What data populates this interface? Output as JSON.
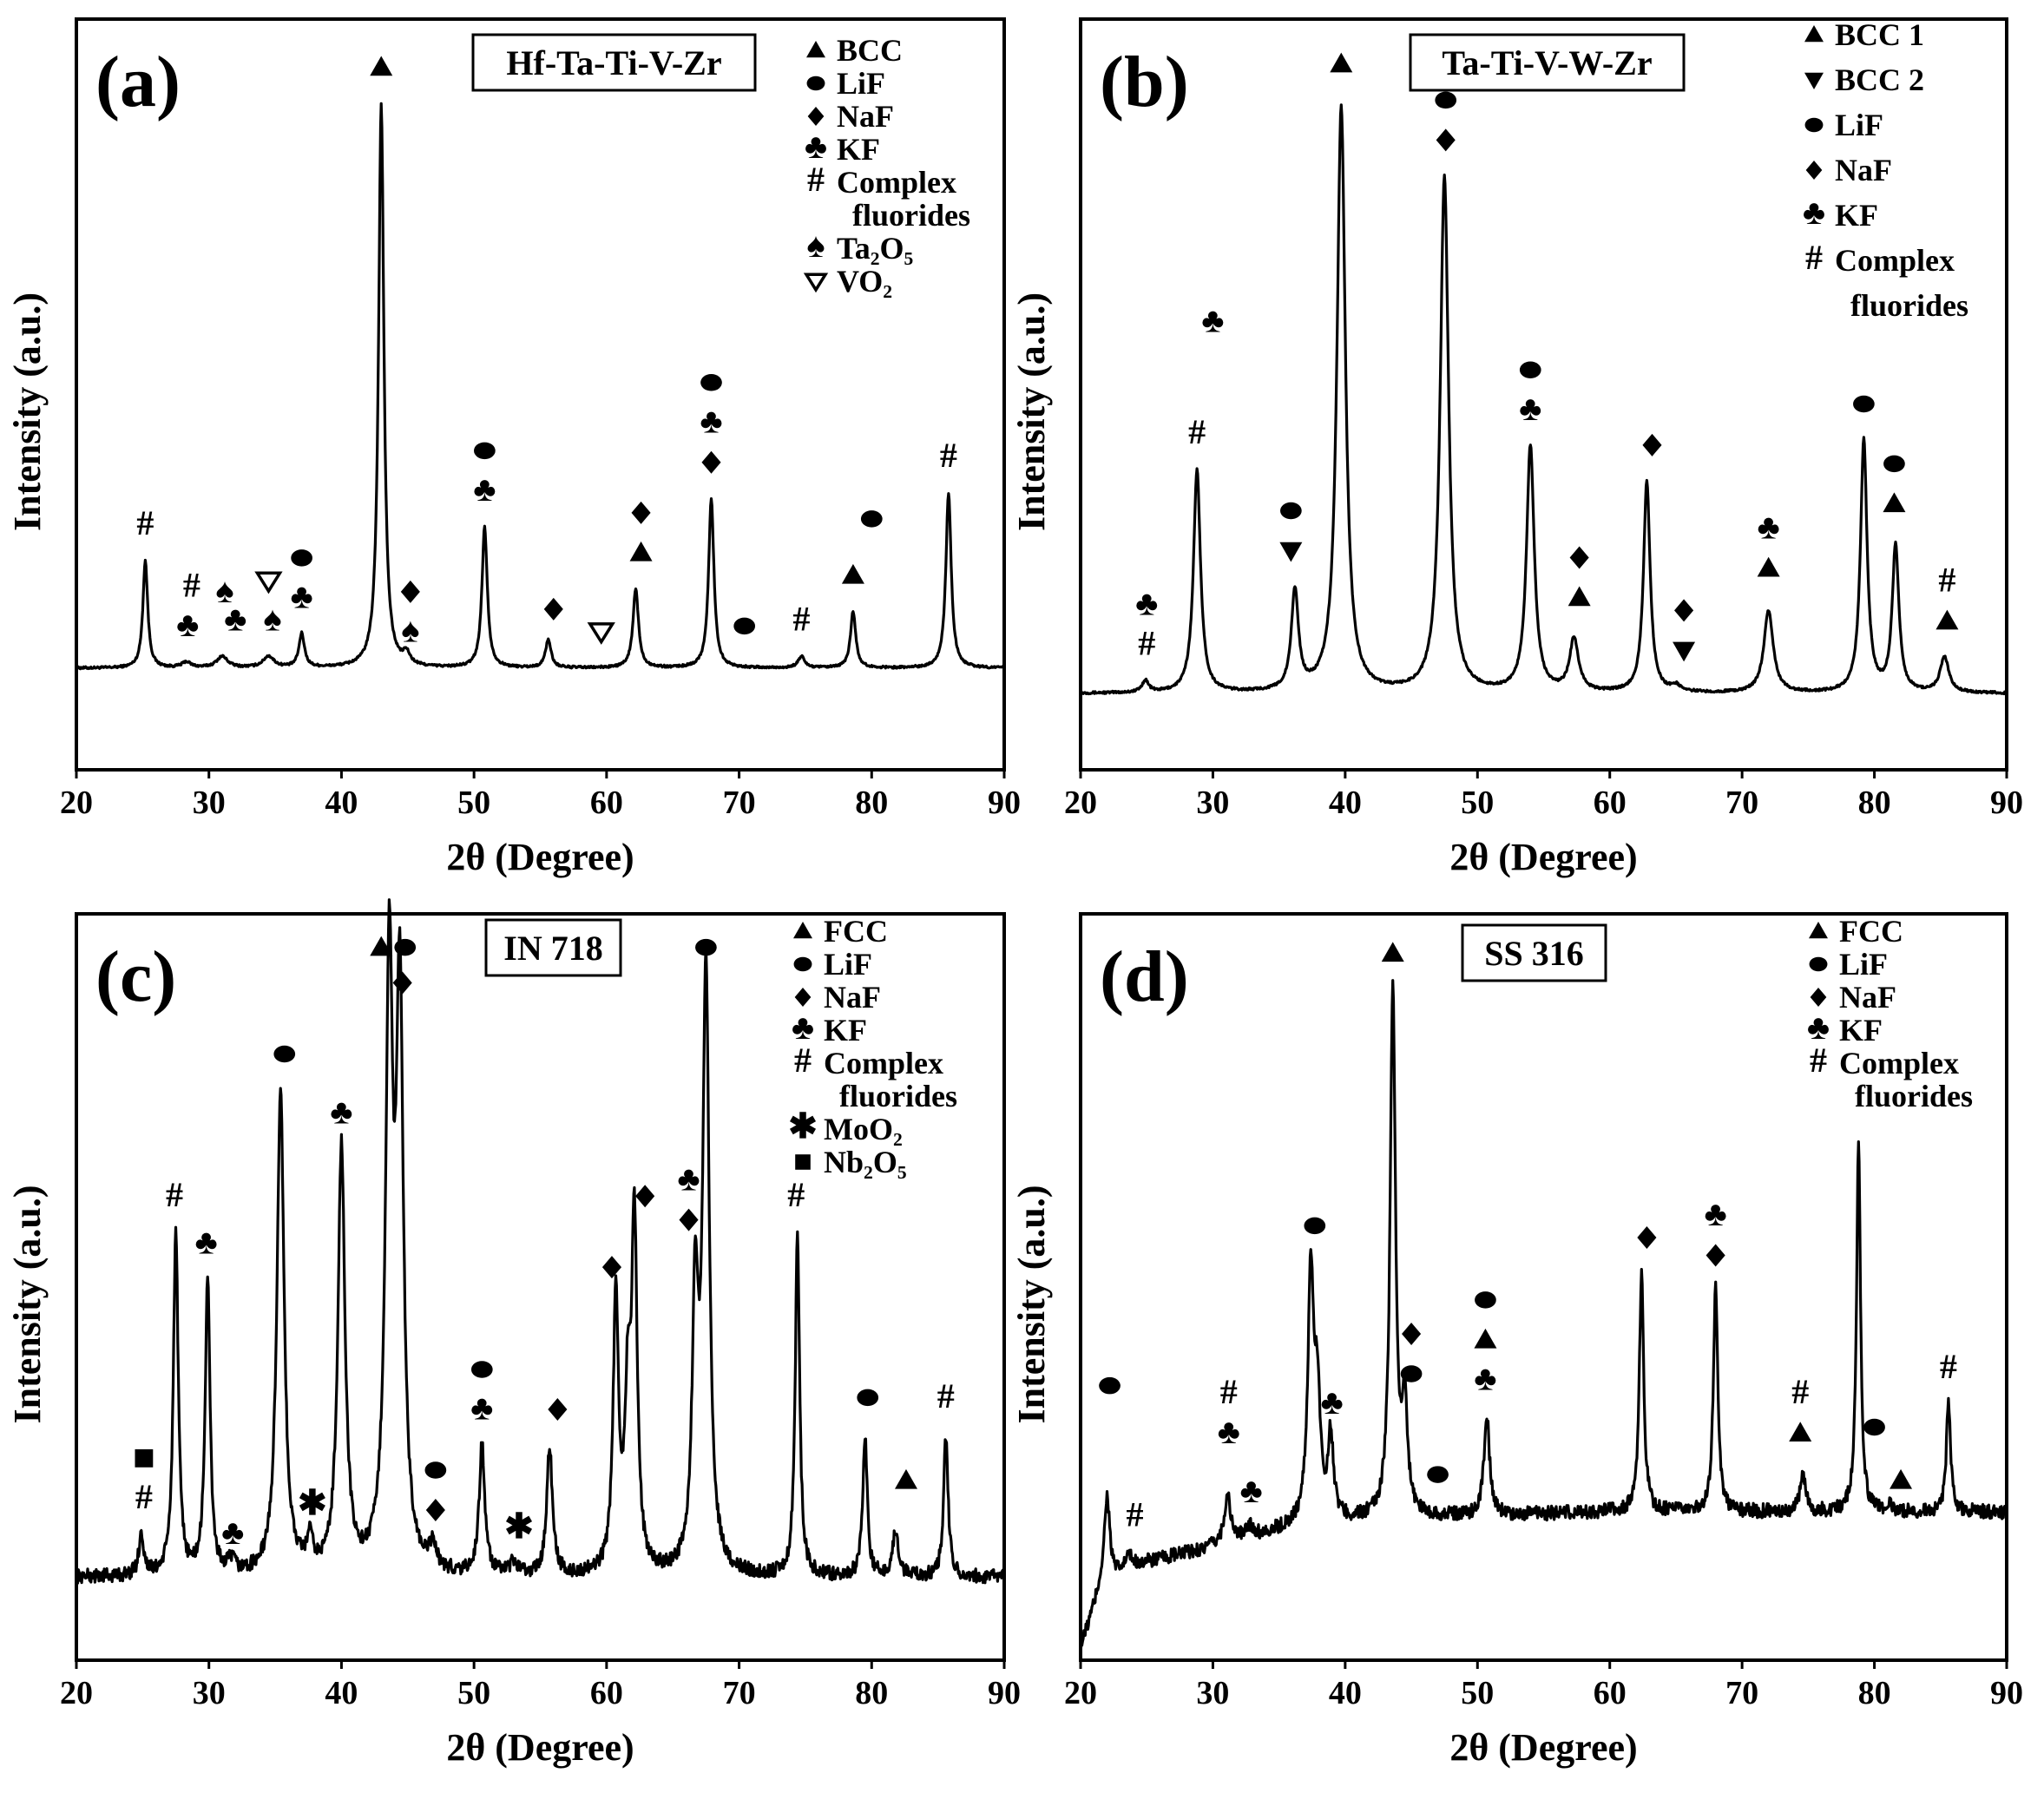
{
  "chart_data": [
    {
      "type": "line",
      "panel": "(a)",
      "sample": "Hf-Ta-Ti-V-Zr",
      "xlabel": "2θ (Degree)",
      "ylabel": "Intensity (a.u.)",
      "xlim": [
        20,
        90
      ],
      "xticks": [
        20,
        30,
        40,
        50,
        60,
        70,
        80,
        90
      ],
      "ylim": [
        -0.18,
        1.15
      ],
      "legend": [
        {
          "symbol": "▲",
          "label": "BCC"
        },
        {
          "symbol": "●",
          "label": "LiF"
        },
        {
          "symbol": "◆",
          "label": "NaF"
        },
        {
          "symbol": "♣",
          "label": "KF"
        },
        {
          "symbol": "#",
          "label": "Complex"
        },
        {
          "symbol": "",
          "label": "fluorides"
        },
        {
          "symbol": "♠",
          "label": "Ta₂O₅"
        },
        {
          "symbol": "▽",
          "label": "VO₂"
        }
      ],
      "noise": 0.002,
      "baseline": [
        [
          20,
          0.0
        ],
        [
          90,
          0.0
        ]
      ],
      "peaks": [
        {
          "x": 25.2,
          "h": 0.19,
          "w": 0.22
        },
        {
          "x": 28.3,
          "h": 0.01,
          "w": 0.4
        },
        {
          "x": 31.0,
          "h": 0.02,
          "w": 0.5
        },
        {
          "x": 34.5,
          "h": 0.02,
          "w": 0.5
        },
        {
          "x": 37.0,
          "h": 0.06,
          "w": 0.25
        },
        {
          "x": 43.0,
          "h": 1.0,
          "w": 0.24
        },
        {
          "x": 44.9,
          "h": 0.02,
          "w": 0.3
        },
        {
          "x": 50.8,
          "h": 0.25,
          "w": 0.24
        },
        {
          "x": 55.6,
          "h": 0.05,
          "w": 0.25
        },
        {
          "x": 62.2,
          "h": 0.14,
          "w": 0.25
        },
        {
          "x": 67.9,
          "h": 0.3,
          "w": 0.24
        },
        {
          "x": 74.7,
          "h": 0.02,
          "w": 0.3
        },
        {
          "x": 78.6,
          "h": 0.1,
          "w": 0.24
        },
        {
          "x": 85.8,
          "h": 0.31,
          "w": 0.24
        }
      ],
      "annotations": [
        {
          "x": 25.2,
          "y": 0.23,
          "symbols": [
            "#"
          ]
        },
        {
          "x": 28.4,
          "y": 0.05,
          "symbols": [
            "♣"
          ]
        },
        {
          "x": 28.7,
          "y": 0.12,
          "symbols": [
            "#"
          ]
        },
        {
          "x": 31.2,
          "y": 0.11,
          "symbols": [
            "♠"
          ]
        },
        {
          "x": 32.0,
          "y": 0.06,
          "symbols": [
            "♣"
          ]
        },
        {
          "x": 34.5,
          "y": 0.13,
          "symbols": [
            "▽"
          ]
        },
        {
          "x": 34.8,
          "y": 0.06,
          "symbols": [
            "♠"
          ]
        },
        {
          "x": 37.0,
          "y": 0.1,
          "symbols": [
            "♣",
            "●"
          ]
        },
        {
          "x": 43.0,
          "y": 1.04,
          "symbols": [
            "▲"
          ]
        },
        {
          "x": 45.2,
          "y": 0.04,
          "symbols": [
            "♠",
            "◆"
          ]
        },
        {
          "x": 50.8,
          "y": 0.29,
          "symbols": [
            "♣",
            "●"
          ]
        },
        {
          "x": 56.0,
          "y": 0.08,
          "symbols": [
            "◆"
          ]
        },
        {
          "x": 59.6,
          "y": 0.04,
          "symbols": [
            "▽"
          ]
        },
        {
          "x": 62.6,
          "y": 0.18,
          "symbols": [
            "▲",
            "◆"
          ]
        },
        {
          "x": 67.9,
          "y": 0.34,
          "symbols": [
            "◆",
            "♣",
            "●"
          ]
        },
        {
          "x": 70.4,
          "y": 0.05,
          "symbols": [
            "●"
          ]
        },
        {
          "x": 74.7,
          "y": 0.06,
          "symbols": [
            "#"
          ]
        },
        {
          "x": 78.6,
          "y": 0.14,
          "symbols": [
            "▲"
          ]
        },
        {
          "x": 80.0,
          "y": 0.24,
          "symbols": [
            "●"
          ]
        },
        {
          "x": 85.8,
          "y": 0.35,
          "symbols": [
            "#"
          ]
        }
      ]
    },
    {
      "type": "line",
      "panel": "(b)",
      "sample": "Ta-Ti-V-W-Zr",
      "xlabel": "2θ (Degree)",
      "ylabel": "Intensity (a.u.)",
      "xlim": [
        20,
        90
      ],
      "xticks": [
        20,
        30,
        40,
        50,
        60,
        70,
        80,
        90
      ],
      "ylim": [
        -0.13,
        1.15
      ],
      "legend": [
        {
          "symbol": "▲",
          "label": "BCC 1"
        },
        {
          "symbol": "▼",
          "label": "BCC 2"
        },
        {
          "symbol": "●",
          "label": "LiF"
        },
        {
          "symbol": "◆",
          "label": "NaF"
        },
        {
          "symbol": "♣",
          "label": "KF"
        },
        {
          "symbol": "#",
          "label": "Complex"
        },
        {
          "symbol": "",
          "label": "fluorides"
        }
      ],
      "noise": 0.002,
      "baseline": [
        [
          20,
          0.0
        ],
        [
          90,
          0.0
        ]
      ],
      "peaks": [
        {
          "x": 24.9,
          "h": 0.02,
          "w": 0.3
        },
        {
          "x": 28.8,
          "h": 0.38,
          "w": 0.32
        },
        {
          "x": 36.2,
          "h": 0.17,
          "w": 0.32
        },
        {
          "x": 39.7,
          "h": 1.0,
          "w": 0.38
        },
        {
          "x": 47.5,
          "h": 0.88,
          "w": 0.38
        },
        {
          "x": 54.0,
          "h": 0.42,
          "w": 0.35
        },
        {
          "x": 57.3,
          "h": 0.09,
          "w": 0.4
        },
        {
          "x": 62.8,
          "h": 0.36,
          "w": 0.3
        },
        {
          "x": 65.0,
          "h": 0.01,
          "w": 0.4
        },
        {
          "x": 72.0,
          "h": 0.14,
          "w": 0.42
        },
        {
          "x": 79.2,
          "h": 0.43,
          "w": 0.3
        },
        {
          "x": 81.6,
          "h": 0.25,
          "w": 0.3
        },
        {
          "x": 85.3,
          "h": 0.06,
          "w": 0.4
        }
      ],
      "annotations": [
        {
          "x": 25.0,
          "y": 0.06,
          "symbols": [
            "#",
            "♣"
          ]
        },
        {
          "x": 28.8,
          "y": 0.42,
          "symbols": [
            "#"
          ]
        },
        {
          "x": 30.0,
          "y": 0.61,
          "symbols": [
            "♣"
          ]
        },
        {
          "x": 35.9,
          "y": 0.22,
          "symbols": [
            "▼",
            "●"
          ]
        },
        {
          "x": 39.7,
          "y": 1.05,
          "symbols": [
            "▲"
          ]
        },
        {
          "x": 47.6,
          "y": 0.92,
          "symbols": [
            "◆",
            "●"
          ]
        },
        {
          "x": 54.0,
          "y": 0.46,
          "symbols": [
            "♣",
            "●"
          ]
        },
        {
          "x": 57.7,
          "y": 0.14,
          "symbols": [
            "▲",
            "◆"
          ]
        },
        {
          "x": 63.2,
          "y": 0.4,
          "symbols": [
            "◆"
          ]
        },
        {
          "x": 65.6,
          "y": 0.05,
          "symbols": [
            "▼",
            "◆"
          ]
        },
        {
          "x": 72.0,
          "y": 0.19,
          "symbols": [
            "▲",
            "♣"
          ]
        },
        {
          "x": 79.2,
          "y": 0.47,
          "symbols": [
            "●"
          ]
        },
        {
          "x": 81.5,
          "y": 0.3,
          "symbols": [
            "▲",
            "●"
          ]
        },
        {
          "x": 85.5,
          "y": 0.1,
          "symbols": [
            "▲",
            "#"
          ]
        }
      ]
    },
    {
      "type": "line",
      "panel": "(c)",
      "sample": "IN 718",
      "xlabel": "2θ (Degree)",
      "ylabel": "Intensity (a.u.)",
      "xlim": [
        20,
        90
      ],
      "xticks": [
        20,
        30,
        40,
        50,
        60,
        70,
        80,
        90
      ],
      "ylim": [
        -0.14,
        1.12
      ],
      "legend": [
        {
          "symbol": "▲",
          "label": "FCC"
        },
        {
          "symbol": "●",
          "label": "LiF"
        },
        {
          "symbol": "◆",
          "label": "NaF"
        },
        {
          "symbol": "♣",
          "label": "KF"
        },
        {
          "symbol": "#",
          "label": "Complex"
        },
        {
          "symbol": "",
          "label": "fluorides"
        },
        {
          "symbol": "✱",
          "label": "MoO₂"
        },
        {
          "symbol": "■",
          "label": "Nb₂O₅"
        }
      ],
      "noise": 0.012,
      "baseline": [
        [
          20,
          0.0
        ],
        [
          90,
          0.0
        ]
      ],
      "peaks": [
        {
          "x": 24.9,
          "h": 0.07,
          "w": 0.22
        },
        {
          "x": 27.5,
          "h": 0.58,
          "w": 0.22
        },
        {
          "x": 29.9,
          "h": 0.5,
          "w": 0.22
        },
        {
          "x": 31.7,
          "h": 0.02,
          "w": 0.3
        },
        {
          "x": 35.4,
          "h": 0.82,
          "w": 0.32
        },
        {
          "x": 37.6,
          "h": 0.05,
          "w": 0.25
        },
        {
          "x": 40.0,
          "h": 0.72,
          "w": 0.32
        },
        {
          "x": 43.6,
          "h": 1.0,
          "w": 0.32
        },
        {
          "x": 44.4,
          "h": 0.95,
          "w": 0.32
        },
        {
          "x": 46.9,
          "h": 0.04,
          "w": 0.3
        },
        {
          "x": 50.6,
          "h": 0.22,
          "w": 0.25
        },
        {
          "x": 53.0,
          "h": 0.02,
          "w": 0.3
        },
        {
          "x": 55.7,
          "h": 0.22,
          "w": 0.25
        },
        {
          "x": 60.7,
          "h": 0.46,
          "w": 0.25
        },
        {
          "x": 61.6,
          "h": 0.27,
          "w": 0.25
        },
        {
          "x": 62.1,
          "h": 0.58,
          "w": 0.25
        },
        {
          "x": 66.7,
          "h": 0.45,
          "w": 0.28
        },
        {
          "x": 67.5,
          "h": 1.0,
          "w": 0.3
        },
        {
          "x": 74.4,
          "h": 0.58,
          "w": 0.2
        },
        {
          "x": 79.5,
          "h": 0.24,
          "w": 0.2
        },
        {
          "x": 81.8,
          "h": 0.08,
          "w": 0.25
        },
        {
          "x": 85.6,
          "h": 0.24,
          "w": 0.2
        }
      ],
      "annotations": [
        {
          "x": 25.1,
          "y": 0.11,
          "symbols": [
            "#",
            "■"
          ]
        },
        {
          "x": 27.4,
          "y": 0.62,
          "symbols": [
            "#"
          ]
        },
        {
          "x": 29.8,
          "y": 0.54,
          "symbols": [
            "♣"
          ]
        },
        {
          "x": 31.8,
          "y": 0.05,
          "symbols": [
            "♣"
          ]
        },
        {
          "x": 35.7,
          "y": 0.86,
          "symbols": [
            "●"
          ]
        },
        {
          "x": 37.8,
          "y": 0.1,
          "symbols": [
            "✱"
          ]
        },
        {
          "x": 40.0,
          "y": 0.76,
          "symbols": [
            "♣"
          ]
        },
        {
          "x": 43.0,
          "y": 1.04,
          "symbols": [
            "▲"
          ]
        },
        {
          "x": 44.8,
          "y": 1.04,
          "symbols": [
            "●"
          ]
        },
        {
          "x": 44.6,
          "y": 0.98,
          "symbols": [
            "◆"
          ]
        },
        {
          "x": 47.1,
          "y": 0.09,
          "symbols": [
            "◆",
            "●"
          ]
        },
        {
          "x": 53.4,
          "y": 0.06,
          "symbols": [
            "✱"
          ]
        },
        {
          "x": 50.6,
          "y": 0.26,
          "symbols": [
            "♣",
            "●"
          ]
        },
        {
          "x": 56.3,
          "y": 0.26,
          "symbols": [
            "◆"
          ]
        },
        {
          "x": 60.4,
          "y": 0.5,
          "symbols": [
            "◆"
          ]
        },
        {
          "x": 62.9,
          "y": 0.62,
          "symbols": [
            "◆"
          ]
        },
        {
          "x": 66.2,
          "y": 0.58,
          "symbols": [
            "◆",
            "♣"
          ]
        },
        {
          "x": 67.5,
          "y": 1.04,
          "symbols": [
            "●"
          ]
        },
        {
          "x": 74.3,
          "y": 0.62,
          "symbols": [
            "#"
          ]
        },
        {
          "x": 79.7,
          "y": 0.28,
          "symbols": [
            "●"
          ]
        },
        {
          "x": 82.6,
          "y": 0.14,
          "symbols": [
            "▲"
          ]
        },
        {
          "x": 85.6,
          "y": 0.28,
          "symbols": [
            "#"
          ]
        }
      ]
    },
    {
      "type": "line",
      "panel": "(d)",
      "sample": "SS 316",
      "xlabel": "2θ (Degree)",
      "ylabel": "Intensity (a.u.)",
      "xlim": [
        20,
        90
      ],
      "xticks": [
        20,
        30,
        40,
        50,
        60,
        70,
        80,
        90
      ],
      "ylim": [
        -0.14,
        1.12
      ],
      "legend": [
        {
          "symbol": "▲",
          "label": "FCC"
        },
        {
          "symbol": "●",
          "label": "LiF"
        },
        {
          "symbol": "◆",
          "label": "NaF"
        },
        {
          "symbol": "♣",
          "label": "KF"
        },
        {
          "symbol": "#",
          "label": "Complex"
        },
        {
          "symbol": "",
          "label": "fluorides"
        }
      ],
      "noise": 0.012,
      "baseline": [
        [
          20,
          -0.12
        ],
        [
          21.5,
          -0.02
        ],
        [
          24,
          0.02
        ],
        [
          30,
          0.05
        ],
        [
          37,
          0.09
        ],
        [
          45,
          0.1
        ],
        [
          60,
          0.11
        ],
        [
          75,
          0.11
        ],
        [
          90,
          0.11
        ]
      ],
      "peaks": [
        {
          "x": 22.0,
          "h": 0.15,
          "w": 0.25
        },
        {
          "x": 23.6,
          "h": 0.02,
          "w": 0.3
        },
        {
          "x": 31.1,
          "h": 0.08,
          "w": 0.3
        },
        {
          "x": 32.8,
          "h": 0.02,
          "w": 0.3
        },
        {
          "x": 37.4,
          "h": 0.42,
          "w": 0.26
        },
        {
          "x": 37.9,
          "h": 0.2,
          "w": 0.25
        },
        {
          "x": 38.9,
          "h": 0.14,
          "w": 0.25
        },
        {
          "x": 43.6,
          "h": 0.9,
          "w": 0.24
        },
        {
          "x": 44.5,
          "h": 0.18,
          "w": 0.25
        },
        {
          "x": 50.7,
          "h": 0.17,
          "w": 0.25
        },
        {
          "x": 62.4,
          "h": 0.4,
          "w": 0.2
        },
        {
          "x": 68.0,
          "h": 0.38,
          "w": 0.2
        },
        {
          "x": 74.6,
          "h": 0.06,
          "w": 0.25
        },
        {
          "x": 78.8,
          "h": 0.63,
          "w": 0.18
        },
        {
          "x": 81.2,
          "h": 0.01,
          "w": 0.3
        },
        {
          "x": 85.6,
          "h": 0.18,
          "w": 0.2
        }
      ],
      "annotations": [
        {
          "x": 22.2,
          "y": 0.3,
          "symbols": [
            "●"
          ]
        },
        {
          "x": 24.1,
          "y": 0.08,
          "symbols": [
            "#"
          ]
        },
        {
          "x": 31.2,
          "y": 0.22,
          "symbols": [
            "♣",
            "#"
          ]
        },
        {
          "x": 32.9,
          "y": 0.12,
          "symbols": [
            "♣"
          ]
        },
        {
          "x": 37.7,
          "y": 0.57,
          "symbols": [
            "●"
          ]
        },
        {
          "x": 39.0,
          "y": 0.27,
          "symbols": [
            "♣"
          ]
        },
        {
          "x": 43.6,
          "y": 1.03,
          "symbols": [
            "▲"
          ]
        },
        {
          "x": 45.0,
          "y": 0.32,
          "symbols": [
            "●",
            "◆"
          ]
        },
        {
          "x": 47.0,
          "y": 0.15,
          "symbols": [
            "●"
          ]
        },
        {
          "x": 50.6,
          "y": 0.31,
          "symbols": [
            "♣",
            "▲",
            "●"
          ]
        },
        {
          "x": 62.8,
          "y": 0.55,
          "symbols": [
            "◆"
          ]
        },
        {
          "x": 68.0,
          "y": 0.52,
          "symbols": [
            "◆",
            "♣"
          ]
        },
        {
          "x": 74.4,
          "y": 0.22,
          "symbols": [
            "▲",
            "#"
          ]
        },
        {
          "x": 80.0,
          "y": 0.23,
          "symbols": [
            "●"
          ]
        },
        {
          "x": 82.0,
          "y": 0.14,
          "symbols": [
            "▲"
          ]
        },
        {
          "x": 85.6,
          "y": 0.33,
          "symbols": [
            "#"
          ]
        }
      ]
    }
  ]
}
